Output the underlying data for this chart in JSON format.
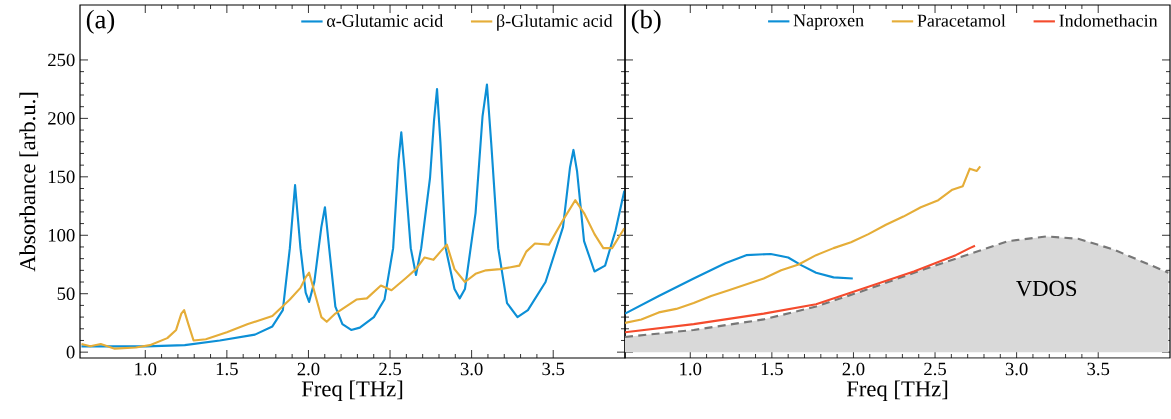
{
  "chart_data": [
    {
      "type": "line",
      "title": "(a)",
      "xlabel": "Freq [THz]",
      "ylabel": "Absorbance [arb.u.]",
      "xlim": [
        0.6,
        3.94
      ],
      "ylim": [
        -5,
        297
      ],
      "xticks": [
        {
          "value": 1,
          "label": "1.0"
        },
        1.5,
        {
          "value": 2,
          "label": "2.0"
        },
        2.5,
        {
          "value": 3,
          "label": "3.0"
        },
        3.5
      ],
      "yticks": [
        0,
        50,
        100,
        150,
        200,
        250
      ],
      "legend": "top right",
      "grid": false,
      "series": [
        {
          "name": "α-Glutamic acid",
          "color": "#0c8fd6",
          "x": [
            0.609,
            0.813,
            1.006,
            1.242,
            1.457,
            1.672,
            1.779,
            1.843,
            1.886,
            1.918,
            1.951,
            1.983,
            2.004,
            2.036,
            2.079,
            2.101,
            2.127,
            2.165,
            2.208,
            2.262,
            2.315,
            2.401,
            2.466,
            2.519,
            2.552,
            2.569,
            2.59,
            2.627,
            2.659,
            2.691,
            2.745,
            2.77,
            2.788,
            2.809,
            2.841,
            2.895,
            2.927,
            2.959,
            3.024,
            3.067,
            3.094,
            3.12,
            3.163,
            3.217,
            3.281,
            3.345,
            3.453,
            3.56,
            3.603,
            3.624,
            3.646,
            3.689,
            3.753,
            3.818,
            3.882,
            3.936
          ],
          "values": [
            5,
            5,
            5,
            6,
            10,
            15,
            22,
            36,
            89,
            143,
            89,
            51,
            43,
            60,
            107,
            124,
            89,
            39,
            24,
            19,
            21,
            30,
            45,
            89,
            164,
            188,
            155,
            89,
            66,
            89,
            149,
            199,
            225,
            179,
            89,
            54,
            46,
            54,
            119,
            202,
            229,
            179,
            89,
            42,
            30,
            36,
            60,
            107,
            158,
            173,
            155,
            95,
            69,
            74,
            104,
            138
          ]
        },
        {
          "name": "β-Glutamic acid",
          "color": "#e5ad38",
          "x": [
            0.609,
            0.663,
            0.727,
            0.813,
            0.942,
            1.028,
            1.135,
            1.189,
            1.221,
            1.238,
            1.264,
            1.296,
            1.371,
            1.5,
            1.629,
            1.779,
            1.886,
            1.951,
            1.983,
            2.004,
            2.026,
            2.079,
            2.112,
            2.165,
            2.294,
            2.358,
            2.444,
            2.509,
            2.594,
            2.659,
            2.712,
            2.766,
            2.809,
            2.848,
            2.895,
            2.959,
            3.024,
            3.088,
            3.174,
            3.292,
            3.335,
            3.388,
            3.474,
            3.56,
            3.635,
            3.689,
            3.753,
            3.807,
            3.861,
            3.936
          ],
          "values": [
            7,
            5,
            7,
            3,
            4,
            6,
            12,
            19,
            33,
            36,
            24,
            10,
            11,
            17,
            24,
            31,
            45,
            55,
            64,
            68,
            57,
            30,
            26,
            33,
            45,
            46,
            57,
            53,
            63,
            71,
            81,
            79,
            86,
            92,
            71,
            60,
            67,
            70,
            71,
            74,
            86,
            93,
            92,
            113,
            130,
            119,
            101,
            89,
            89,
            106
          ]
        }
      ]
    },
    {
      "type": "line",
      "title": "(b)",
      "xlabel": "Freq [THz]",
      "xlim": [
        0.6,
        3.94
      ],
      "ylim": [
        -5,
        297
      ],
      "xticks": [
        {
          "value": 1,
          "label": "1.0"
        },
        1.5,
        {
          "value": 2,
          "label": "2.0"
        },
        2.5,
        {
          "value": 3,
          "label": "3.0"
        },
        3.5
      ],
      "yticks": [
        0,
        50,
        100,
        150,
        200,
        250
      ],
      "tick_labels": "x",
      "legend": "top right",
      "grid": false,
      "series": [
        {
          "type": "area",
          "name": "VDOS",
          "color": "#d9d9d9",
          "line_style": "dashed",
          "x": [
            0.6,
            1.021,
            1.45,
            1.771,
            2.092,
            2.413,
            2.734,
            2.949,
            3.184,
            3.377,
            3.591,
            3.93
          ],
          "values": [
            13,
            19,
            28,
            39,
            54,
            70,
            85,
            95,
            99,
            97,
            88,
            68
          ]
        },
        {
          "name": "Naproxen",
          "color": "#0c8fd6",
          "x": [
            0.6,
            0.807,
            1.021,
            1.214,
            1.343,
            1.493,
            1.6,
            1.685,
            1.771,
            1.878,
            1.996
          ],
          "values": [
            33,
            48,
            63,
            76,
            83,
            84,
            81,
            74,
            68,
            64,
            63
          ]
        },
        {
          "name": "Paracetamol",
          "color": "#e5ad38",
          "x": [
            0.6,
            0.7,
            0.807,
            0.914,
            1.021,
            1.128,
            1.236,
            1.343,
            1.45,
            1.557,
            1.664,
            1.771,
            1.878,
            1.985,
            2.092,
            2.199,
            2.306,
            2.413,
            2.52,
            2.606,
            2.67,
            2.713,
            2.756,
            2.777
          ],
          "values": [
            25,
            28,
            34,
            37,
            42,
            48,
            53,
            58,
            63,
            70,
            75,
            83,
            89,
            94,
            101,
            109,
            116,
            124,
            130,
            139,
            142,
            157,
            155,
            159
          ]
        },
        {
          "name": "Indomethacin",
          "color": "#f44b2d",
          "x": [
            0.6,
            1.021,
            1.45,
            1.771,
            2.092,
            2.37,
            2.627,
            2.713,
            2.745
          ],
          "values": [
            17,
            24,
            33,
            41,
            56,
            69,
            83,
            89,
            91
          ]
        }
      ]
    }
  ]
}
